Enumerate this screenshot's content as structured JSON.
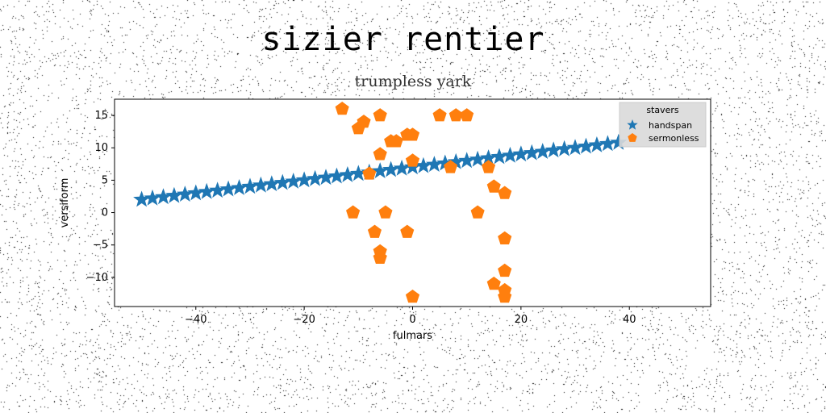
{
  "suptitle": "sizier rentier",
  "chart_data": {
    "type": "scatter",
    "title": "trumpless yark",
    "xlabel": "fulmars",
    "ylabel": "versiform",
    "xlim": [
      -55,
      55
    ],
    "ylim": [
      -14.5,
      17.5
    ],
    "xticks": [
      -40,
      -20,
      0,
      20,
      40
    ],
    "yticks": [
      -10,
      -5,
      0,
      5,
      10,
      15
    ],
    "grid": false,
    "legend": {
      "title": "stavers",
      "placement": "top-right"
    },
    "series": [
      {
        "name": "handspan",
        "marker": "star",
        "color": "#1f77b4",
        "x": [
          -50,
          -48,
          -46,
          -44,
          -42,
          -40,
          -38,
          -36,
          -34,
          -32,
          -30,
          -28,
          -26,
          -24,
          -22,
          -20,
          -18,
          -16,
          -14,
          -12,
          -10,
          -8,
          -6,
          -4,
          -2,
          0,
          2,
          4,
          6,
          8,
          10,
          12,
          14,
          16,
          18,
          20,
          22,
          24,
          26,
          28,
          30,
          32,
          34,
          36,
          38
        ],
        "y": [
          2.0,
          2.2,
          2.4,
          2.6,
          2.8,
          3.0,
          3.2,
          3.4,
          3.6,
          3.8,
          4.0,
          4.2,
          4.4,
          4.6,
          4.8,
          5.0,
          5.2,
          5.4,
          5.6,
          5.8,
          6.0,
          6.2,
          6.4,
          6.6,
          6.8,
          7.0,
          7.2,
          7.4,
          7.6,
          7.8,
          8.0,
          8.2,
          8.4,
          8.6,
          8.8,
          9.0,
          9.2,
          9.4,
          9.6,
          9.8,
          10.0,
          10.2,
          10.4,
          10.6,
          10.8
        ]
      },
      {
        "name": "sermonless",
        "marker": "pentagon",
        "color": "#ff7f0e",
        "x": [
          -13,
          -10,
          -9,
          -6,
          -3,
          -1,
          5,
          8,
          10,
          -6,
          -8,
          0,
          7,
          14,
          -4,
          0,
          -11,
          -5,
          12,
          15,
          17,
          -7,
          -1,
          17,
          -6,
          -6,
          17,
          15,
          17,
          17,
          0
        ],
        "y": [
          16,
          13,
          14,
          15,
          11,
          12,
          15,
          15,
          15,
          9,
          6,
          8,
          7,
          7,
          11,
          12,
          0,
          0,
          0,
          4,
          3,
          -3,
          -3,
          -4,
          -6,
          -7,
          -9,
          -11,
          -12,
          -13,
          -13
        ]
      }
    ]
  }
}
